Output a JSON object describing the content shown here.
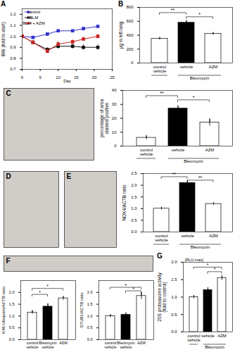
{
  "chart_data": [
    {
      "type": "line",
      "title": "A",
      "xlabel": "Day",
      "ylabel": "BW (fold to start)",
      "xlim": [
        0,
        25
      ],
      "ylim": [
        0.7,
        1.25
      ],
      "xticks": [
        0,
        5,
        10,
        15,
        20,
        25
      ],
      "yticks": [
        0.7,
        0.8,
        0.9,
        {
          "value": 1.0,
          "label": "1.0"
        },
        1.1,
        1.2
      ],
      "legend": "upper left",
      "series": [
        {
          "name": "control",
          "color": "#3333cc",
          "marker": "square",
          "x": [
            0,
            3,
            7,
            10,
            14,
            17,
            21
          ],
          "values": [
            1.0,
            0.99,
            1.02,
            1.05,
            1.05,
            1.07,
            1.09
          ],
          "errors": [
            0.01,
            0.01,
            0.01,
            0.01,
            0.01,
            0.01,
            0.015
          ]
        },
        {
          "name": "BLM",
          "color": "#111111",
          "marker": "square",
          "x": [
            0,
            3,
            7,
            10,
            14,
            17,
            21
          ],
          "values": [
            1.0,
            0.945,
            0.88,
            0.91,
            0.91,
            0.9,
            0.9
          ],
          "errors": [
            0.01,
            0.015,
            0.02,
            0.025,
            0.025,
            0.025,
            0.025
          ]
        },
        {
          "name": "BLM + AZM",
          "color": "#cc2222",
          "marker": "square",
          "x": [
            0,
            3,
            7,
            10,
            14,
            17,
            21
          ],
          "values": [
            1.0,
            0.945,
            0.865,
            0.93,
            0.95,
            0.975,
            1.0
          ],
          "errors": [
            0.01,
            0.015,
            0.02,
            0.025,
            0.02,
            0.02,
            0.02
          ]
        }
      ]
    },
    {
      "type": "bar",
      "title": "B",
      "ylabel": "μg in left lung",
      "categories": [
        "control\nvehicle",
        "vehicle",
        "AZM"
      ],
      "values": [
        350,
        580,
        420
      ],
      "errors": [
        20,
        30,
        20
      ],
      "colors": [
        "white",
        "black",
        "white"
      ],
      "ylim": [
        0,
        800
      ],
      "yticks": [
        0,
        200,
        400,
        600,
        800
      ],
      "groups": [
        {
          "label": null,
          "categories": [
            "control\nvehicle"
          ]
        },
        {
          "label": "Bleomycin",
          "categories": [
            "vehicle",
            "AZM"
          ]
        }
      ],
      "annotations": [
        {
          "text": "**",
          "from": "control\nvehicle",
          "to": "vehicle",
          "y": 720
        },
        {
          "text": "*",
          "from": "vehicle",
          "to": "AZM",
          "y": 660
        }
      ]
    },
    {
      "type": "image",
      "title": "C",
      "color": "#d0ccc8"
    },
    {
      "type": "bar",
      "ylabel": "percentage of area\nstained positive",
      "categories": [
        "control\nvehicle",
        "vehicle",
        "AZM"
      ],
      "values": [
        6,
        27,
        17
      ],
      "errors": [
        1.5,
        2.0,
        2.5
      ],
      "colors": [
        "white",
        "black",
        "white"
      ],
      "ylim": [
        0,
        40
      ],
      "yticks": [
        0,
        10,
        20,
        30,
        40
      ],
      "groups": [
        {
          "label": null,
          "categories": [
            "control\nvehicle"
          ]
        },
        {
          "label": "Bleomycin",
          "categories": [
            "vehicle",
            "AZM"
          ]
        }
      ],
      "annotations": [
        {
          "text": "**",
          "from": "control\nvehicle",
          "to": "vehicle",
          "y": 36
        },
        {
          "text": "*",
          "from": "vehicle",
          "to": "AZM",
          "y": 33
        }
      ]
    },
    {
      "type": "image",
      "title": "D",
      "color": "#d0ccc8"
    },
    {
      "type": "image",
      "title": "E",
      "color": "#d0ccc8"
    },
    {
      "type": "bar",
      "ylabel": "NOX4/ACTB ratio",
      "categories": [
        "control\nvehicle",
        "vehicle",
        "AZM"
      ],
      "values": [
        1.0,
        2.1,
        1.2
      ],
      "errors": [
        0.06,
        0.1,
        0.05
      ],
      "colors": [
        "white",
        "black",
        "white"
      ],
      "ylim": [
        0.0,
        2.5
      ],
      "yticks": [
        {
          "value": 0.0,
          "label": "0.0"
        },
        0.5,
        {
          "value": 1.0,
          "label": "1.0"
        },
        1.5,
        {
          "value": 2.0,
          "label": "2.0"
        },
        2.5
      ],
      "groups": [
        {
          "label": null,
          "categories": [
            "control\nvehicle"
          ]
        },
        {
          "label": "Bleomycin",
          "categories": [
            "vehicle",
            "AZM"
          ]
        }
      ],
      "annotations": [
        {
          "text": "**",
          "from": "control\nvehicle",
          "to": "vehicle",
          "y": 2.35
        },
        {
          "text": "**",
          "from": "vehicle",
          "to": "AZM",
          "y": 2.2
        }
      ]
    },
    {
      "type": "image",
      "title": "F",
      "color": "#d0ccc8"
    },
    {
      "type": "bar",
      "ylabel": "K48-Ubiquitin/ACTB ratio",
      "categories": [
        "control\nvehicle",
        "Bleomycin\nvehicle",
        "AZM"
      ],
      "values": [
        1.15,
        1.4,
        1.75
      ],
      "errors": [
        0.08,
        0.12,
        0.08
      ],
      "colors": [
        "white",
        "black",
        "white"
      ],
      "ylim": [
        0,
        2.5
      ],
      "yticks": [
        {
          "value": 0.0,
          "label": "0.0"
        },
        0.5,
        {
          "value": 1.0,
          "label": "1.0"
        },
        1.5,
        {
          "value": 2.0,
          "label": "2.0"
        }
      ],
      "annotations": [
        {
          "text": "*",
          "from": "control\nvehicle",
          "to": "AZM",
          "y": 2.15
        },
        {
          "text": "*",
          "from": "control\nvehicle",
          "to": "Bleomycin\nvehicle",
          "y": 1.9
        }
      ]
    },
    {
      "type": "bar",
      "ylabel": "STUB1/ACTB ratio",
      "categories": [
        "control\nvehicle",
        "Bleomycin\nvehicle",
        "AZM"
      ],
      "values": [
        1.0,
        1.05,
        1.85
      ],
      "errors": [
        0.06,
        0.08,
        0.15
      ],
      "colors": [
        "white",
        "black",
        "white"
      ],
      "ylim": [
        0,
        2.5
      ],
      "yticks": [
        {
          "value": 0.0,
          "label": "0.0"
        },
        0.5,
        {
          "value": 1.0,
          "label": "1.0"
        },
        1.5,
        {
          "value": 2.0,
          "label": "2.0"
        }
      ],
      "annotations": [
        {
          "text": "*",
          "from": "control\nvehicle",
          "to": "AZM",
          "y": 2.2
        },
        {
          "text": "*",
          "from": "Bleomycin\nvehicle",
          "to": "AZM",
          "y": 2.05
        }
      ]
    },
    {
      "type": "bar",
      "title": "G",
      "subtitle": "(RLU max)",
      "ylabel": "20S proteasome activity\n(fold to control)",
      "categories": [
        "control\nvehicle",
        "vehicle",
        "AZM"
      ],
      "values": [
        1.0,
        1.2,
        1.55
      ],
      "errors": [
        0.05,
        0.07,
        0.07
      ],
      "colors": [
        "white",
        "black",
        "white"
      ],
      "ylim": [
        0,
        2.0
      ],
      "yticks": [
        {
          "value": 0.0,
          "label": "0.0"
        },
        0.5,
        {
          "value": 1.0,
          "label": "1.0"
        },
        1.5,
        {
          "value": 2.0,
          "label": "2.0"
        }
      ],
      "groups": [
        {
          "label": null,
          "categories": [
            "control\nvehicle"
          ]
        },
        {
          "label": "Bleomycin",
          "categories": [
            "vehicle",
            "AZM"
          ]
        }
      ],
      "annotations": [
        {
          "text": "*",
          "from": "control\nvehicle",
          "to": "AZM",
          "y": 1.85
        },
        {
          "text": "*",
          "from": "vehicle",
          "to": "AZM",
          "y": 1.72
        }
      ]
    }
  ]
}
